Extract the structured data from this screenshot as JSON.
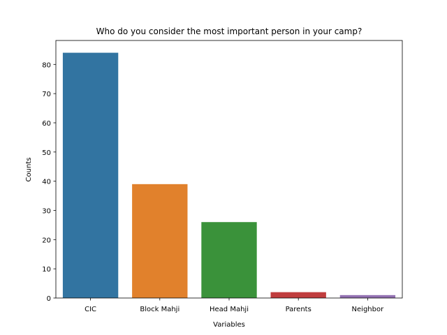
{
  "chart_data": {
    "type": "bar",
    "title": "Who do you consider the most important person in your camp?",
    "xlabel": "Variables",
    "ylabel": "Counts",
    "categories": [
      "CIC",
      "Block Mahji",
      "Head Mahji",
      "Parents",
      "Neighbor"
    ],
    "values": [
      84,
      39,
      26,
      2,
      1
    ],
    "colors": [
      "#3274a1",
      "#e1812c",
      "#3a923a",
      "#c03d3e",
      "#9372b2"
    ],
    "ylim": [
      0,
      88.2
    ],
    "yticks": [
      0,
      10,
      20,
      30,
      40,
      50,
      60,
      70,
      80
    ],
    "grid": false,
    "legend": false
  }
}
